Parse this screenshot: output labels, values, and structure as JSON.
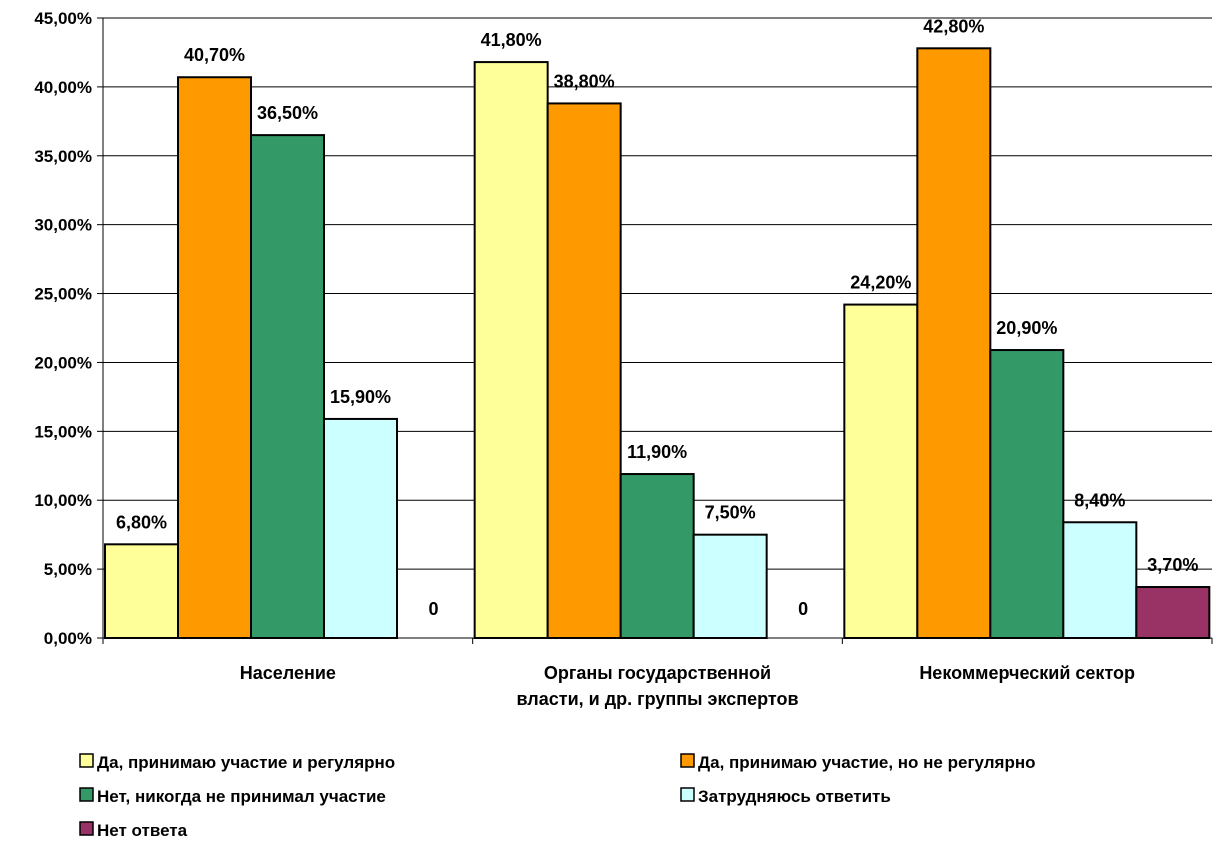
{
  "chart_data": {
    "type": "bar",
    "title": "",
    "xlabel": "",
    "ylabel": "",
    "ylim": [
      0,
      45
    ],
    "ytick_values": [
      0,
      5,
      10,
      15,
      20,
      25,
      30,
      35,
      40,
      45
    ],
    "ytick_labels": [
      "0,00%",
      "5,00%",
      "10,00%",
      "15,00%",
      "20,00%",
      "25,00%",
      "30,00%",
      "35,00%",
      "40,00%",
      "45,00%"
    ],
    "grid": true,
    "legend_position": "bottom",
    "categories": [
      [
        "Население"
      ],
      [
        "Органы государственной",
        "власти, и др. группы экспертов"
      ],
      [
        "Некоммерческий сектор"
      ]
    ],
    "series": [
      {
        "name": "Да, принимаю участие и регулярно",
        "color": "#FFFF99",
        "values": [
          6.8,
          41.8,
          24.2
        ],
        "labels": [
          "6,80%",
          "41,80%",
          "24,20%"
        ]
      },
      {
        "name": "Да, принимаю участие, но не регулярно",
        "color": "#FF9900",
        "values": [
          40.7,
          38.8,
          42.8
        ],
        "labels": [
          "40,70%",
          "38,80%",
          "42,80%"
        ]
      },
      {
        "name": "Нет, никогда не принимал участие",
        "color": "#339966",
        "values": [
          36.5,
          11.9,
          20.9
        ],
        "labels": [
          "36,50%",
          "11,90%",
          "20,90%"
        ]
      },
      {
        "name": "Затрудняюсь ответить",
        "color": "#CCFFFF",
        "values": [
          15.9,
          7.5,
          8.4
        ],
        "labels": [
          "15,90%",
          "7,50%",
          "8,40%"
        ]
      },
      {
        "name": "Нет ответа",
        "color": "#993366",
        "values": [
          0,
          0,
          3.7
        ],
        "labels": [
          "0",
          "0",
          "3,70%"
        ]
      }
    ]
  }
}
